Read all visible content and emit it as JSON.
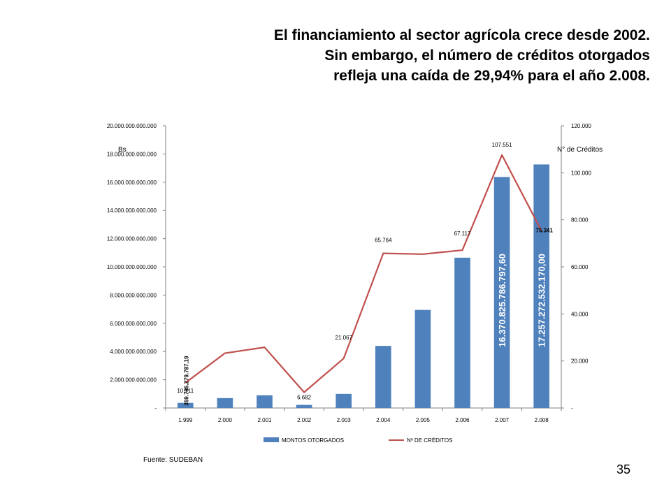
{
  "title": {
    "line1": "El financiamiento al sector agrícola crece desde 2002.",
    "line2": "Sin embargo, el número de créditos otorgados",
    "line3": "refleja una caída de 29,94% para el año 2.008."
  },
  "source": "Fuente: SUDEBAN",
  "page_number": "35",
  "colors": {
    "bars": "#4f81bd",
    "line": "#c0504d",
    "axis": "#808080"
  },
  "chart_data": {
    "type": "bar",
    "categories": [
      "1.999",
      "2.000",
      "2.001",
      "2.002",
      "2.003",
      "2.004",
      "2.005",
      "2.006",
      "2.007",
      "2.008"
    ],
    "y_left_label": "Bs",
    "y_right_label": "N° de Créditos",
    "y_left_ticks": [
      "-",
      "2.000.000.000.000",
      "4.000.000.000.000",
      "6.000.000.000.000",
      "8.000.000.000.000",
      "10.000.000.000.000",
      "12.000.000.000.000",
      "14.000.000.000.000",
      "16.000.000.000.000",
      "18.000.000.000.000",
      "20.000.000.000.000"
    ],
    "y_right_ticks": [
      "-",
      "20.000",
      "40.000",
      "60.000",
      "80.000",
      "100.000",
      "120.000"
    ],
    "ylim_left": [
      0,
      20000000000000
    ],
    "ylim_right": [
      0,
      120000
    ],
    "series": [
      {
        "name": "MONTOS OTORGADOS",
        "type": "bar",
        "axis": "left",
        "values": [
          359785279787.19,
          700000000000,
          900000000000,
          220000000000,
          1000000000000,
          4400000000000,
          6950000000000,
          10650000000000,
          16370825786797.6,
          17257272532170.0
        ]
      },
      {
        "name": "Nº DE CRÉDITOS",
        "type": "line",
        "axis": "right",
        "values": [
          10711,
          23300,
          25800,
          6682,
          21067,
          65764,
          65400,
          67117,
          107551,
          75341
        ]
      }
    ],
    "bar_data_labels": [
      {
        "index": 0,
        "text": "359.785.279.787,19"
      },
      {
        "index": 8,
        "text": "16.370.825.786.797,60"
      },
      {
        "index": 9,
        "text": "17.257.272.532.170,00"
      }
    ],
    "line_data_labels": [
      {
        "index": 0,
        "text": "10.711"
      },
      {
        "index": 3,
        "text": "6.682"
      },
      {
        "index": 4,
        "text": "21.067"
      },
      {
        "index": 5,
        "text": "65.764"
      },
      {
        "index": 7,
        "text": "67.117"
      },
      {
        "index": 8,
        "text": "107.551"
      },
      {
        "index": 9,
        "text": "75.341"
      }
    ],
    "legend_position": "bottom"
  }
}
